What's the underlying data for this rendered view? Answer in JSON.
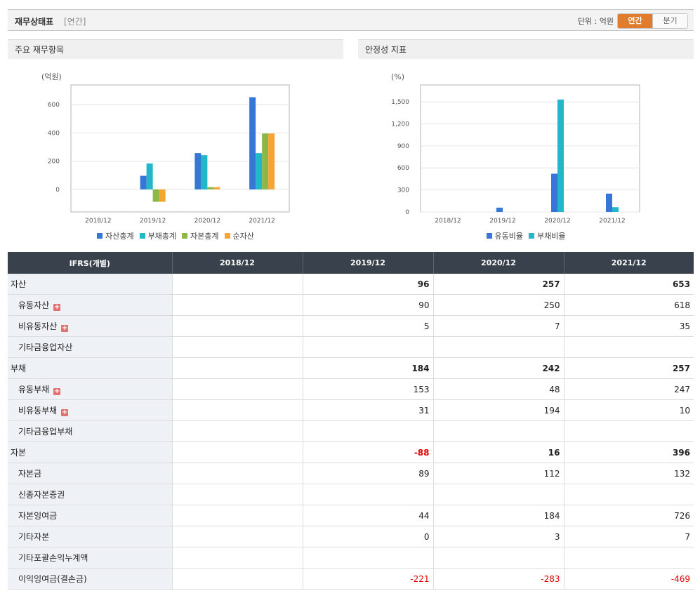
{
  "header": {
    "title": "재무상태표",
    "subtitle": "[연간]",
    "unit_label": "단위 : 억원",
    "period_tabs": [
      {
        "label": "연간",
        "active": true
      },
      {
        "label": "분기",
        "active": false
      }
    ]
  },
  "charts": {
    "left": {
      "panel_title": "주요 재무항목"
    },
    "right": {
      "panel_title": "안정성 지표"
    }
  },
  "chart_data": [
    {
      "type": "bar",
      "ylabel": "(억원)",
      "categories": [
        "2018/12",
        "2019/12",
        "2020/12",
        "2021/12"
      ],
      "ylim": [
        -160,
        740
      ],
      "yticks": [
        0,
        200,
        400,
        600
      ],
      "grid": true,
      "legend_position": "bottom",
      "series": [
        {
          "name": "자산총계",
          "color": "#3576d6",
          "values": [
            null,
            96,
            257,
            653
          ]
        },
        {
          "name": "부채총계",
          "color": "#22b7c9",
          "values": [
            null,
            184,
            242,
            257
          ]
        },
        {
          "name": "자본총계",
          "color": "#8cb84a",
          "values": [
            null,
            -88,
            16,
            396
          ]
        },
        {
          "name": "순자산",
          "color": "#f5a533",
          "values": [
            null,
            -88,
            16,
            396
          ]
        }
      ]
    },
    {
      "type": "bar",
      "ylabel": "(%)",
      "categories": [
        "2018/12",
        "2019/12",
        "2020/12",
        "2021/12"
      ],
      "ylim": [
        0,
        1730
      ],
      "yticks": [
        0,
        300,
        600,
        900,
        1200,
        1500
      ],
      "ytick_labels": [
        "0",
        "300",
        "600",
        "900",
        "1,200",
        "1,500"
      ],
      "grid": true,
      "legend_position": "bottom",
      "series": [
        {
          "name": "유동비율",
          "color": "#3576d6",
          "values": [
            null,
            59,
            521,
            250
          ]
        },
        {
          "name": "부채비율",
          "color": "#22b7c9",
          "values": [
            null,
            null,
            1531,
            65
          ]
        }
      ]
    }
  ],
  "table": {
    "headers": [
      "IFRS(개별)",
      "2018/12",
      "2019/12",
      "2020/12",
      "2021/12"
    ],
    "rows": [
      {
        "label": "자산",
        "level": 0,
        "expand": false,
        "values": [
          "",
          "96",
          "257",
          "653"
        ]
      },
      {
        "label": "유동자산",
        "level": 1,
        "expand": true,
        "values": [
          "",
          "90",
          "250",
          "618"
        ]
      },
      {
        "label": "비유동자산",
        "level": 1,
        "expand": true,
        "values": [
          "",
          "5",
          "7",
          "35"
        ]
      },
      {
        "label": "기타금융업자산",
        "level": 1,
        "expand": false,
        "values": [
          "",
          "",
          "",
          ""
        ]
      },
      {
        "label": "부채",
        "level": 0,
        "expand": false,
        "values": [
          "",
          "184",
          "242",
          "257"
        ]
      },
      {
        "label": "유동부채",
        "level": 1,
        "expand": true,
        "values": [
          "",
          "153",
          "48",
          "247"
        ]
      },
      {
        "label": "비유동부채",
        "level": 1,
        "expand": true,
        "values": [
          "",
          "31",
          "194",
          "10"
        ]
      },
      {
        "label": "기타금융업부채",
        "level": 1,
        "expand": false,
        "values": [
          "",
          "",
          "",
          ""
        ]
      },
      {
        "label": "자본",
        "level": 0,
        "expand": false,
        "values": [
          "",
          "-88",
          "16",
          "396"
        ]
      },
      {
        "label": "자본금",
        "level": 1,
        "expand": false,
        "values": [
          "",
          "89",
          "112",
          "132"
        ]
      },
      {
        "label": "신종자본증권",
        "level": 1,
        "expand": false,
        "values": [
          "",
          "",
          "",
          ""
        ]
      },
      {
        "label": "자본잉여금",
        "level": 1,
        "expand": false,
        "values": [
          "",
          "44",
          "184",
          "726"
        ]
      },
      {
        "label": "기타자본",
        "level": 1,
        "expand": false,
        "values": [
          "",
          "0",
          "3",
          "7"
        ]
      },
      {
        "label": "기타포괄손익누계액",
        "level": 1,
        "expand": false,
        "values": [
          "",
          "",
          "",
          ""
        ]
      },
      {
        "label": "이익잉여금(결손금)",
        "level": 1,
        "expand": false,
        "values": [
          "",
          "-221",
          "-283",
          "-469"
        ]
      }
    ],
    "expand_icon": "plus-icon"
  }
}
